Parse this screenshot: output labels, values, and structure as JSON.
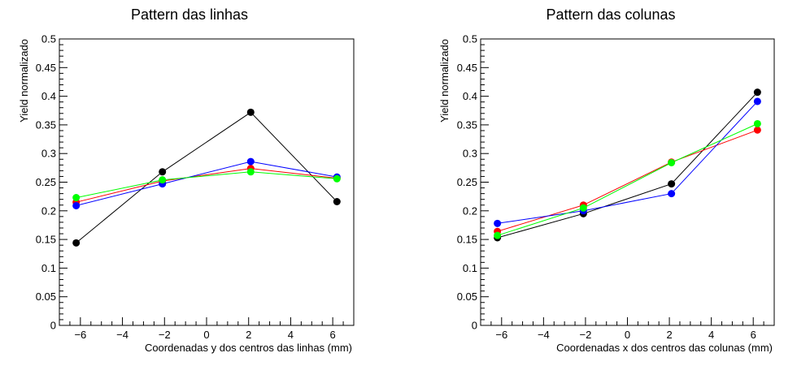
{
  "chart_data": [
    {
      "type": "line",
      "title": "Pattern das linhas",
      "xlabel": "Coordenadas y dos centros das linhas (mm)",
      "ylabel": "Yield normalizado",
      "xlim": [
        -7,
        7
      ],
      "ylim": [
        0,
        0.5
      ],
      "xticks": [
        -6,
        -4,
        -2,
        0,
        2,
        4,
        6
      ],
      "yticks": [
        0,
        0.05,
        0.1,
        0.15,
        0.2,
        0.25,
        0.3,
        0.35,
        0.4,
        0.45,
        0.5
      ],
      "xtick_labels": [
        "−6",
        "−4",
        "−2",
        "0",
        "2",
        "4",
        "6"
      ],
      "ytick_labels": [
        "0",
        "0.05",
        "0.1",
        "0.15",
        "0.2",
        "0.25",
        "0.3",
        "0.35",
        "0.4",
        "0.45",
        "0.5"
      ],
      "grid": false,
      "series": [
        {
          "color": "#000000",
          "x": [
            -6.2,
            -2.1,
            2.1,
            6.2
          ],
          "y": [
            0.144,
            0.268,
            0.372,
            0.216
          ]
        },
        {
          "color": "#ff0000",
          "x": [
            -6.2,
            -2.1,
            2.1,
            6.2
          ],
          "y": [
            0.215,
            0.252,
            0.274,
            0.257
          ]
        },
        {
          "color": "#0000ff",
          "x": [
            -6.2,
            -2.1,
            2.1,
            6.2
          ],
          "y": [
            0.209,
            0.247,
            0.286,
            0.259
          ]
        },
        {
          "color": "#00ff00",
          "x": [
            -6.2,
            -2.1,
            2.1,
            6.2
          ],
          "y": [
            0.223,
            0.254,
            0.268,
            0.256
          ]
        }
      ]
    },
    {
      "type": "line",
      "title": "Pattern das colunas",
      "xlabel": "Coordenadas x dos centros das colunas (mm)",
      "ylabel": "Yield normalizado",
      "xlim": [
        -7,
        7
      ],
      "ylim": [
        0,
        0.5
      ],
      "xticks": [
        -6,
        -4,
        -2,
        0,
        2,
        4,
        6
      ],
      "yticks": [
        0,
        0.05,
        0.1,
        0.15,
        0.2,
        0.25,
        0.3,
        0.35,
        0.4,
        0.45,
        0.5
      ],
      "xtick_labels": [
        "−6",
        "−4",
        "−2",
        "0",
        "2",
        "4",
        "6"
      ],
      "ytick_labels": [
        "0",
        "0.05",
        "0.1",
        "0.15",
        "0.2",
        "0.25",
        "0.3",
        "0.35",
        "0.4",
        "0.45",
        "0.5"
      ],
      "grid": false,
      "series": [
        {
          "color": "#000000",
          "x": [
            -6.2,
            -2.1,
            2.1,
            6.2
          ],
          "y": [
            0.153,
            0.195,
            0.247,
            0.407
          ]
        },
        {
          "color": "#ff0000",
          "x": [
            -6.2,
            -2.1,
            2.1,
            6.2
          ],
          "y": [
            0.164,
            0.21,
            0.285,
            0.341
          ]
        },
        {
          "color": "#0000ff",
          "x": [
            -6.2,
            -2.1,
            2.1,
            6.2
          ],
          "y": [
            0.178,
            0.2,
            0.23,
            0.391
          ]
        },
        {
          "color": "#00ff00",
          "x": [
            -6.2,
            -2.1,
            2.1,
            6.2
          ],
          "y": [
            0.157,
            0.205,
            0.284,
            0.352
          ]
        }
      ]
    }
  ]
}
